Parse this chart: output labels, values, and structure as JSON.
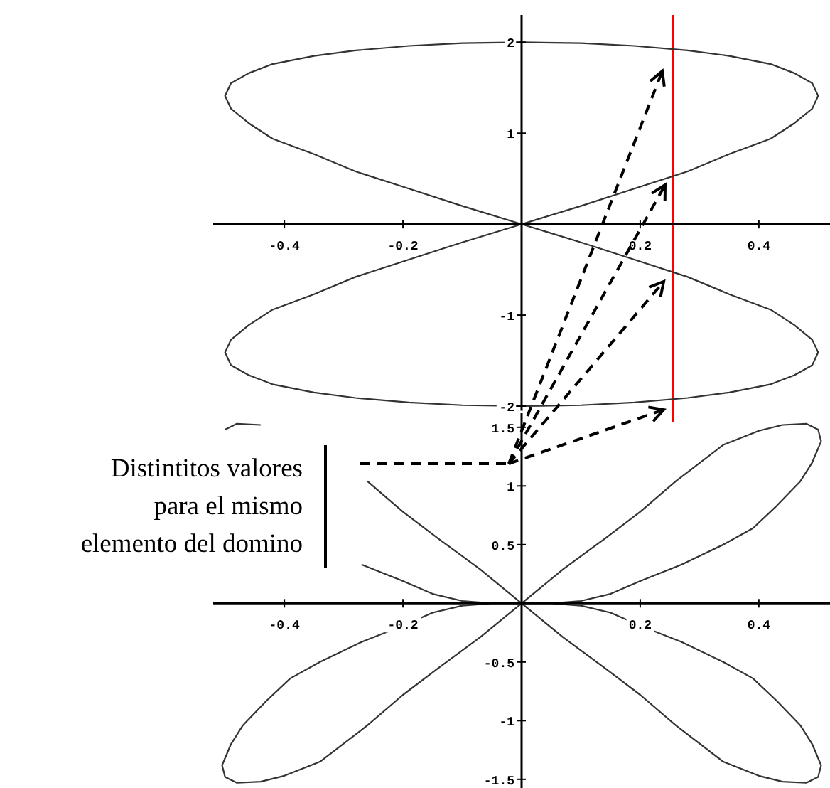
{
  "chart_data": [
    {
      "type": "line",
      "xlim": [
        -0.52,
        0.52
      ],
      "ylim": [
        -2.05,
        2.3
      ],
      "xticks": [
        -0.4,
        -0.2,
        0.2,
        0.4
      ],
      "yticks": [
        -2,
        -1,
        1,
        2
      ],
      "series": [
        {
          "color": "#333333",
          "x": [
            0,
            -0.1,
            -0.19,
            -0.28,
            -0.35,
            -0.42,
            -0.46,
            -0.49,
            -0.5,
            -0.49,
            -0.46,
            -0.42,
            -0.35,
            -0.28,
            -0.19,
            -0.1,
            0,
            0.1,
            0.19,
            0.28,
            0.35,
            0.42,
            0.46,
            0.49,
            0.5,
            0.49,
            0.46,
            0.42,
            0.35,
            0.28,
            0.19,
            0.1,
            0
          ],
          "values": [
            2,
            1.99,
            1.96,
            1.91,
            1.85,
            1.76,
            1.66,
            1.55,
            1.41,
            1.27,
            1.11,
            0.94,
            0.77,
            0.58,
            0.39,
            0.2,
            0,
            -0.2,
            -0.39,
            -0.58,
            -0.77,
            -0.94,
            -1.11,
            -1.27,
            -1.41,
            -1.55,
            -1.66,
            -1.76,
            -1.85,
            -1.91,
            -1.96,
            -1.99,
            -2
          ]
        },
        {
          "color": "#333333",
          "x": [
            0,
            -0.1,
            -0.19,
            -0.28,
            -0.35,
            -0.42,
            -0.46,
            -0.49,
            -0.5,
            -0.49,
            -0.46,
            -0.42,
            -0.35,
            -0.28,
            -0.19,
            -0.1,
            0,
            0.1,
            0.19,
            0.28,
            0.35,
            0.42,
            0.46,
            0.49,
            0.5,
            0.49,
            0.46,
            0.42,
            0.35,
            0.28,
            0.19,
            0.1,
            0
          ],
          "values": [
            -2,
            -1.99,
            -1.96,
            -1.91,
            -1.85,
            -1.76,
            -1.66,
            -1.55,
            -1.41,
            -1.27,
            -1.11,
            -0.94,
            -0.77,
            -0.58,
            -0.39,
            -0.2,
            0,
            0.2,
            0.39,
            0.58,
            0.77,
            0.94,
            1.11,
            1.27,
            1.41,
            1.55,
            1.66,
            1.76,
            1.85,
            1.91,
            1.96,
            1.99,
            2
          ]
        }
      ],
      "ref_lines": [
        {
          "axis": "x",
          "value": 0.255,
          "color": "#ff0000"
        }
      ]
    },
    {
      "type": "line",
      "xlim": [
        -0.52,
        0.52
      ],
      "ylim": [
        -1.58,
        1.62
      ],
      "xticks": [
        -0.4,
        -0.2,
        0.2,
        0.4
      ],
      "yticks": [
        -1.5,
        -1,
        -0.5,
        0.5,
        1,
        1.5
      ],
      "series": [
        {
          "color": "#333333",
          "x": [
            0,
            0.07,
            0.14,
            0.2,
            0.26,
            0.34,
            0.4,
            0.44,
            0.48,
            0.5,
            0.505,
            0.49,
            0.47,
            0.43,
            0.39,
            0.34,
            0.27,
            0.2,
            0.15,
            0.1,
            0.05,
            0,
            -0.05,
            -0.1,
            -0.15,
            -0.2,
            -0.27,
            -0.34,
            -0.39,
            -0.43,
            -0.47,
            -0.49,
            -0.5,
            -0.48,
            -0.44,
            -0.4,
            -0.34,
            -0.26,
            -0.2,
            -0.14,
            -0.07,
            0,
            0.07,
            0.14,
            0.2,
            0.26,
            0.34,
            0.4,
            0.44,
            0.48,
            0.5,
            0.505,
            0.49,
            0.47,
            0.43,
            0.39,
            0.34,
            0.27,
            0.2,
            0.15,
            0.1,
            0.05,
            0,
            -0.05,
            -0.1,
            -0.15,
            -0.2,
            -0.27,
            -0.34,
            -0.39,
            -0.43,
            -0.47,
            -0.49,
            -0.505,
            -0.5,
            -0.48,
            -0.44,
            -0.4,
            -0.34,
            -0.26,
            -0.2,
            -0.14,
            -0.07,
            0
          ],
          "values": [
            0,
            0.29,
            0.55,
            0.78,
            1.04,
            1.35,
            1.47,
            1.52,
            1.53,
            1.48,
            1.38,
            1.2,
            1.04,
            0.83,
            0.64,
            0.5,
            0.33,
            0.19,
            0.08,
            0.02,
            0,
            0,
            0,
            0.02,
            0.08,
            0.19,
            0.33,
            null,
            null,
            null,
            null,
            null,
            1.48,
            1.53,
            1.52,
            null,
            null,
            1.04,
            0.78,
            0.55,
            0.29,
            0,
            -0.29,
            -0.55,
            -0.78,
            -1.04,
            -1.35,
            -1.47,
            -1.52,
            -1.53,
            -1.48,
            -1.38,
            -1.2,
            -1.04,
            -0.83,
            -0.64,
            -0.5,
            -0.33,
            -0.19,
            -0.08,
            -0.02,
            0,
            0,
            0,
            -0.02,
            -0.08,
            -0.19,
            -0.33,
            -0.5,
            -0.64,
            -0.83,
            -1.04,
            -1.2,
            -1.38,
            -1.48,
            -1.53,
            -1.52,
            -1.47,
            -1.35,
            -1.04,
            -0.78,
            -0.55,
            -0.29,
            0
          ]
        }
      ],
      "annotations": [
        "Distintitos valores\npara el mismo\nelemento del domino"
      ]
    }
  ]
}
